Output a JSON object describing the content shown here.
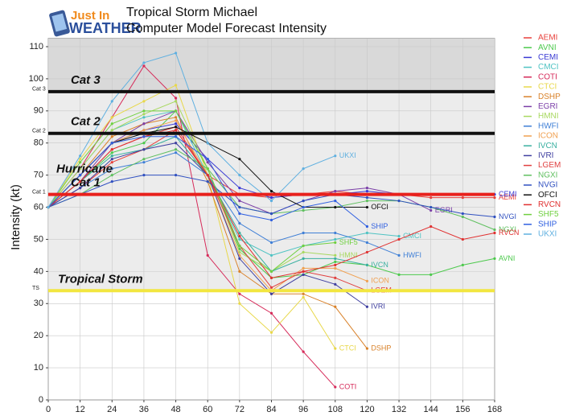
{
  "logo": {
    "line1": "Just In",
    "line2": "WEATHER"
  },
  "chart_data": {
    "type": "line",
    "title": "Tropical Storm Michael",
    "subtitle": "Computer Model Forecast Intensity",
    "y_label": "Intensity (kt)",
    "x": [
      0,
      12,
      24,
      36,
      48,
      60,
      72,
      84,
      96,
      108,
      120,
      132,
      144,
      156,
      168
    ],
    "xlim": [
      0,
      168
    ],
    "xticks": [
      0,
      12,
      24,
      36,
      48,
      60,
      72,
      84,
      96,
      108,
      120,
      132,
      144,
      156,
      168
    ],
    "ylim": [
      0,
      110
    ],
    "yticks": [
      0,
      10,
      20,
      30,
      40,
      50,
      60,
      70,
      80,
      90,
      100,
      110
    ],
    "grid": true,
    "legend": "right",
    "thresholds": [
      {
        "value": 96,
        "color": "#111111",
        "axis_label": "Cat 3",
        "label": [
          "Cat 3"
        ]
      },
      {
        "value": 83,
        "color": "#111111",
        "axis_label": "Cat 2",
        "label": [
          "Cat 2"
        ]
      },
      {
        "value": 64,
        "color": "#e8201c",
        "axis_label": "Cat 1",
        "label": [
          "Hurricane",
          "Cat 1"
        ]
      },
      {
        "value": 34,
        "color": "#f2e640",
        "axis_label": "TS",
        "label": [
          "Tropical Storm"
        ]
      }
    ],
    "series": [
      {
        "name": "AEMI",
        "color": "#e8413c",
        "values": [
          60,
          66,
          74,
          78,
          84,
          70,
          64,
          63,
          64,
          65,
          64,
          64,
          63,
          63,
          63
        ]
      },
      {
        "name": "AVNI",
        "color": "#4cc94c",
        "values": [
          60,
          68,
          77,
          80,
          90,
          72,
          47,
          38,
          39,
          43,
          42,
          39,
          39,
          42,
          44
        ]
      },
      {
        "name": "CEMI",
        "color": "#3a3ad4",
        "values": [
          60,
          70,
          80,
          84,
          86,
          75,
          66,
          63,
          64,
          64,
          65,
          64,
          64,
          64,
          64
        ]
      },
      {
        "name": "CMCI",
        "color": "#4fc3c3",
        "values": [
          60,
          72,
          84,
          88,
          90,
          70,
          50,
          45,
          48,
          50,
          52,
          51,
          null,
          null,
          null
        ]
      },
      {
        "name": "COTI",
        "color": "#d62b5a",
        "values": [
          60,
          72,
          88,
          104,
          94,
          45,
          33,
          27,
          15,
          4,
          null,
          null,
          null,
          null,
          null
        ]
      },
      {
        "name": "CTCI",
        "color": "#e8d84a",
        "values": [
          60,
          75,
          88,
          93,
          98,
          70,
          30,
          21,
          32,
          16,
          null,
          null,
          null,
          null,
          null
        ]
      },
      {
        "name": "DSHP",
        "color": "#d9822b",
        "values": [
          60,
          70,
          82,
          86,
          88,
          68,
          40,
          33,
          33,
          29,
          16,
          null,
          null,
          null,
          null
        ]
      },
      {
        "name": "EGRI",
        "color": "#7b3fa8",
        "values": [
          60,
          68,
          80,
          86,
          90,
          74,
          62,
          58,
          62,
          65,
          66,
          64,
          59,
          null,
          null
        ]
      },
      {
        "name": "HMNI",
        "color": "#a8d860",
        "values": [
          60,
          72,
          84,
          89,
          93,
          72,
          46,
          40,
          46,
          45,
          null,
          null,
          null,
          null,
          null
        ]
      },
      {
        "name": "HWFI",
        "color": "#3f7fd6",
        "values": [
          60,
          66,
          72,
          74,
          77,
          70,
          55,
          49,
          52,
          52,
          49,
          45,
          null,
          null,
          null
        ]
      },
      {
        "name": "ICON",
        "color": "#f0a050",
        "values": [
          60,
          70,
          80,
          84,
          87,
          70,
          45,
          34,
          41,
          41,
          37,
          null,
          null,
          null,
          null
        ]
      },
      {
        "name": "IVCN",
        "color": "#3ab0a0",
        "values": [
          60,
          68,
          76,
          78,
          82,
          70,
          52,
          40,
          44,
          44,
          42,
          null,
          null,
          null,
          null
        ]
      },
      {
        "name": "IVRI",
        "color": "#4040a0",
        "values": [
          60,
          66,
          75,
          78,
          80,
          70,
          44,
          33,
          39,
          36,
          29,
          null,
          null,
          null,
          null
        ]
      },
      {
        "name": "LGEM",
        "color": "#e04040",
        "values": [
          60,
          68,
          78,
          82,
          85,
          70,
          48,
          35,
          40,
          38,
          34,
          null,
          null,
          null,
          null
        ]
      },
      {
        "name": "NGXI",
        "color": "#60c060",
        "values": [
          60,
          64,
          70,
          75,
          78,
          72,
          60,
          58,
          59,
          60,
          62,
          62,
          60,
          57,
          53
        ]
      },
      {
        "name": "NVGI",
        "color": "#3050c0",
        "values": [
          60,
          64,
          68,
          70,
          70,
          68,
          60,
          58,
          62,
          64,
          63,
          62,
          60,
          58,
          57
        ]
      },
      {
        "name": "OFCI",
        "color": "#111111",
        "values": [
          60,
          70,
          80,
          83,
          85,
          80,
          75,
          65,
          60,
          60,
          60,
          null,
          null,
          null,
          null
        ]
      },
      {
        "name": "RVCN",
        "color": "#e03030",
        "values": [
          60,
          68,
          78,
          82,
          84,
          70,
          51,
          38,
          40,
          42,
          46,
          50,
          54,
          50,
          52
        ]
      },
      {
        "name": "SHF5",
        "color": "#70d040",
        "values": [
          60,
          74,
          86,
          90,
          90,
          72,
          48,
          40,
          48,
          49,
          null,
          null,
          null,
          null,
          null
        ]
      },
      {
        "name": "SHIP",
        "color": "#3060e0",
        "values": [
          60,
          70,
          80,
          82,
          82,
          75,
          58,
          56,
          60,
          62,
          54,
          null,
          null,
          null,
          null
        ]
      },
      {
        "name": "UKXI",
        "color": "#60b0e0",
        "values": [
          60,
          76,
          93,
          105,
          108,
          80,
          70,
          62,
          72,
          76,
          null,
          null,
          null,
          null,
          null
        ]
      }
    ]
  }
}
